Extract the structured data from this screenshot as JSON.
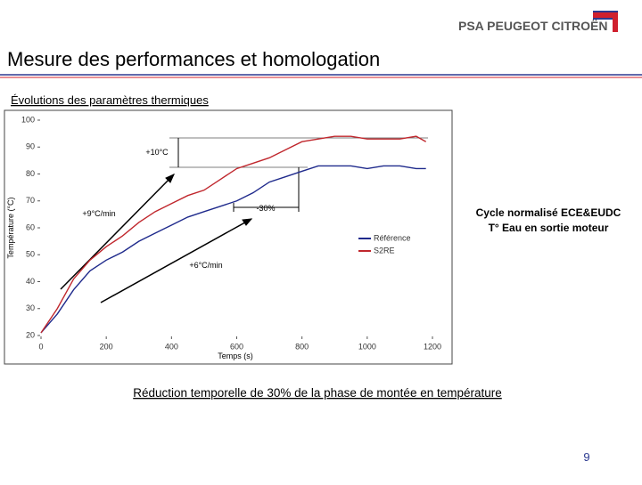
{
  "slide": {
    "logo": "PSA PEUGEOT CITROËN",
    "title": "Mesure des performances et homologation",
    "subtitle": "Évolutions des paramètres thermiques",
    "note_lines": [
      "Cycle normalisé ECE&EUDC",
      "T° Eau en sortie moteur"
    ],
    "caption": "Réduction temporelle de 30% de la phase de montée en température",
    "page_number": "9"
  },
  "chart_data": {
    "type": "line",
    "x_label": "Temps (s)",
    "y_label": "Température (°C)",
    "x": [
      0,
      50,
      100,
      150,
      200,
      250,
      300,
      350,
      400,
      450,
      500,
      550,
      600,
      650,
      700,
      750,
      800,
      850,
      900,
      950,
      1000,
      1050,
      1100,
      1150,
      1180
    ],
    "series": [
      {
        "name": "Référence",
        "color": "#1f2a8c",
        "values": [
          21,
          28,
          37,
          44,
          48,
          51,
          55,
          58,
          61,
          64,
          66,
          68,
          70,
          73,
          77,
          79,
          81,
          83,
          83,
          83,
          82,
          83,
          83,
          82,
          82
        ]
      },
      {
        "name": "S2RE",
        "color": "#c0272d",
        "values": [
          21,
          30,
          41,
          48,
          53,
          57,
          62,
          66,
          69,
          72,
          74,
          78,
          82,
          84,
          86,
          89,
          92,
          93,
          94,
          94,
          93,
          93,
          93,
          94,
          92
        ]
      }
    ],
    "xlim": [
      0,
      1200
    ],
    "xticks": [
      0,
      200,
      400,
      600,
      800,
      1000,
      1200
    ],
    "ylim": [
      20,
      100
    ],
    "yticks": [
      20,
      30,
      40,
      50,
      60,
      70,
      80,
      90,
      100
    ],
    "annotations": [
      "+10°C",
      "+9°C/min",
      "-30%",
      "+6°C/min"
    ]
  }
}
